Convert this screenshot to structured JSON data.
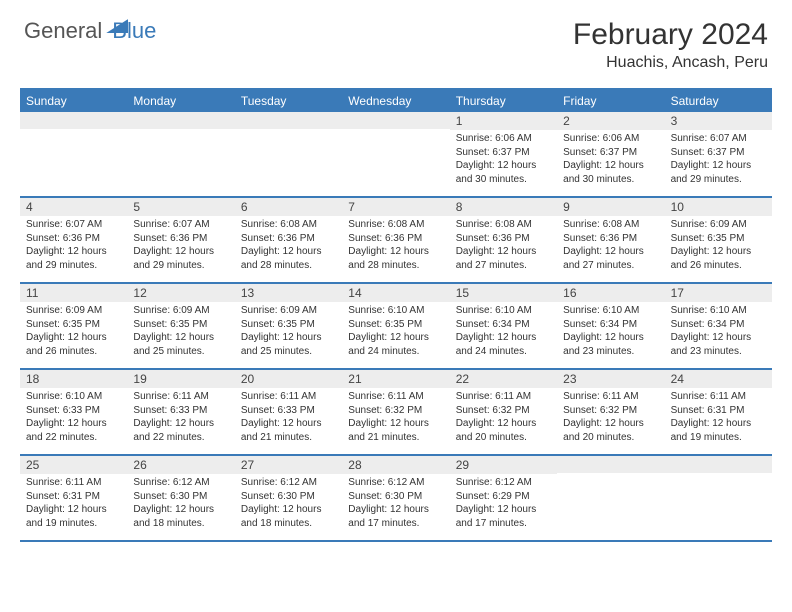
{
  "brand": {
    "part1": "General",
    "part2": "Blue"
  },
  "title": "February 2024",
  "location": "Huachis, Ancash, Peru",
  "colors": {
    "accent": "#3a7ab8",
    "headerBg": "#3a7ab8",
    "headerText": "#ffffff",
    "dayStripBg": "#ededed",
    "borderColor": "#3a7ab8",
    "textColor": "#333333",
    "background": "#ffffff"
  },
  "typography": {
    "titleFontSize": 30,
    "locationFontSize": 16,
    "dayHeaderFontSize": 12,
    "dayNumFontSize": 12,
    "detailFontSize": 10,
    "fontFamily": "Arial"
  },
  "layout": {
    "columns": 7,
    "rows": 5,
    "cellMinHeight": 84
  },
  "dayNames": [
    "Sunday",
    "Monday",
    "Tuesday",
    "Wednesday",
    "Thursday",
    "Friday",
    "Saturday"
  ],
  "weeks": [
    [
      {
        "day": "",
        "sunrise": "",
        "sunset": "",
        "daylight": ""
      },
      {
        "day": "",
        "sunrise": "",
        "sunset": "",
        "daylight": ""
      },
      {
        "day": "",
        "sunrise": "",
        "sunset": "",
        "daylight": ""
      },
      {
        "day": "",
        "sunrise": "",
        "sunset": "",
        "daylight": ""
      },
      {
        "day": "1",
        "sunrise": "Sunrise: 6:06 AM",
        "sunset": "Sunset: 6:37 PM",
        "daylight": "Daylight: 12 hours and 30 minutes."
      },
      {
        "day": "2",
        "sunrise": "Sunrise: 6:06 AM",
        "sunset": "Sunset: 6:37 PM",
        "daylight": "Daylight: 12 hours and 30 minutes."
      },
      {
        "day": "3",
        "sunrise": "Sunrise: 6:07 AM",
        "sunset": "Sunset: 6:37 PM",
        "daylight": "Daylight: 12 hours and 29 minutes."
      }
    ],
    [
      {
        "day": "4",
        "sunrise": "Sunrise: 6:07 AM",
        "sunset": "Sunset: 6:36 PM",
        "daylight": "Daylight: 12 hours and 29 minutes."
      },
      {
        "day": "5",
        "sunrise": "Sunrise: 6:07 AM",
        "sunset": "Sunset: 6:36 PM",
        "daylight": "Daylight: 12 hours and 29 minutes."
      },
      {
        "day": "6",
        "sunrise": "Sunrise: 6:08 AM",
        "sunset": "Sunset: 6:36 PM",
        "daylight": "Daylight: 12 hours and 28 minutes."
      },
      {
        "day": "7",
        "sunrise": "Sunrise: 6:08 AM",
        "sunset": "Sunset: 6:36 PM",
        "daylight": "Daylight: 12 hours and 28 minutes."
      },
      {
        "day": "8",
        "sunrise": "Sunrise: 6:08 AM",
        "sunset": "Sunset: 6:36 PM",
        "daylight": "Daylight: 12 hours and 27 minutes."
      },
      {
        "day": "9",
        "sunrise": "Sunrise: 6:08 AM",
        "sunset": "Sunset: 6:36 PM",
        "daylight": "Daylight: 12 hours and 27 minutes."
      },
      {
        "day": "10",
        "sunrise": "Sunrise: 6:09 AM",
        "sunset": "Sunset: 6:35 PM",
        "daylight": "Daylight: 12 hours and 26 minutes."
      }
    ],
    [
      {
        "day": "11",
        "sunrise": "Sunrise: 6:09 AM",
        "sunset": "Sunset: 6:35 PM",
        "daylight": "Daylight: 12 hours and 26 minutes."
      },
      {
        "day": "12",
        "sunrise": "Sunrise: 6:09 AM",
        "sunset": "Sunset: 6:35 PM",
        "daylight": "Daylight: 12 hours and 25 minutes."
      },
      {
        "day": "13",
        "sunrise": "Sunrise: 6:09 AM",
        "sunset": "Sunset: 6:35 PM",
        "daylight": "Daylight: 12 hours and 25 minutes."
      },
      {
        "day": "14",
        "sunrise": "Sunrise: 6:10 AM",
        "sunset": "Sunset: 6:35 PM",
        "daylight": "Daylight: 12 hours and 24 minutes."
      },
      {
        "day": "15",
        "sunrise": "Sunrise: 6:10 AM",
        "sunset": "Sunset: 6:34 PM",
        "daylight": "Daylight: 12 hours and 24 minutes."
      },
      {
        "day": "16",
        "sunrise": "Sunrise: 6:10 AM",
        "sunset": "Sunset: 6:34 PM",
        "daylight": "Daylight: 12 hours and 23 minutes."
      },
      {
        "day": "17",
        "sunrise": "Sunrise: 6:10 AM",
        "sunset": "Sunset: 6:34 PM",
        "daylight": "Daylight: 12 hours and 23 minutes."
      }
    ],
    [
      {
        "day": "18",
        "sunrise": "Sunrise: 6:10 AM",
        "sunset": "Sunset: 6:33 PM",
        "daylight": "Daylight: 12 hours and 22 minutes."
      },
      {
        "day": "19",
        "sunrise": "Sunrise: 6:11 AM",
        "sunset": "Sunset: 6:33 PM",
        "daylight": "Daylight: 12 hours and 22 minutes."
      },
      {
        "day": "20",
        "sunrise": "Sunrise: 6:11 AM",
        "sunset": "Sunset: 6:33 PM",
        "daylight": "Daylight: 12 hours and 21 minutes."
      },
      {
        "day": "21",
        "sunrise": "Sunrise: 6:11 AM",
        "sunset": "Sunset: 6:32 PM",
        "daylight": "Daylight: 12 hours and 21 minutes."
      },
      {
        "day": "22",
        "sunrise": "Sunrise: 6:11 AM",
        "sunset": "Sunset: 6:32 PM",
        "daylight": "Daylight: 12 hours and 20 minutes."
      },
      {
        "day": "23",
        "sunrise": "Sunrise: 6:11 AM",
        "sunset": "Sunset: 6:32 PM",
        "daylight": "Daylight: 12 hours and 20 minutes."
      },
      {
        "day": "24",
        "sunrise": "Sunrise: 6:11 AM",
        "sunset": "Sunset: 6:31 PM",
        "daylight": "Daylight: 12 hours and 19 minutes."
      }
    ],
    [
      {
        "day": "25",
        "sunrise": "Sunrise: 6:11 AM",
        "sunset": "Sunset: 6:31 PM",
        "daylight": "Daylight: 12 hours and 19 minutes."
      },
      {
        "day": "26",
        "sunrise": "Sunrise: 6:12 AM",
        "sunset": "Sunset: 6:30 PM",
        "daylight": "Daylight: 12 hours and 18 minutes."
      },
      {
        "day": "27",
        "sunrise": "Sunrise: 6:12 AM",
        "sunset": "Sunset: 6:30 PM",
        "daylight": "Daylight: 12 hours and 18 minutes."
      },
      {
        "day": "28",
        "sunrise": "Sunrise: 6:12 AM",
        "sunset": "Sunset: 6:30 PM",
        "daylight": "Daylight: 12 hours and 17 minutes."
      },
      {
        "day": "29",
        "sunrise": "Sunrise: 6:12 AM",
        "sunset": "Sunset: 6:29 PM",
        "daylight": "Daylight: 12 hours and 17 minutes."
      },
      {
        "day": "",
        "sunrise": "",
        "sunset": "",
        "daylight": ""
      },
      {
        "day": "",
        "sunrise": "",
        "sunset": "",
        "daylight": ""
      }
    ]
  ]
}
